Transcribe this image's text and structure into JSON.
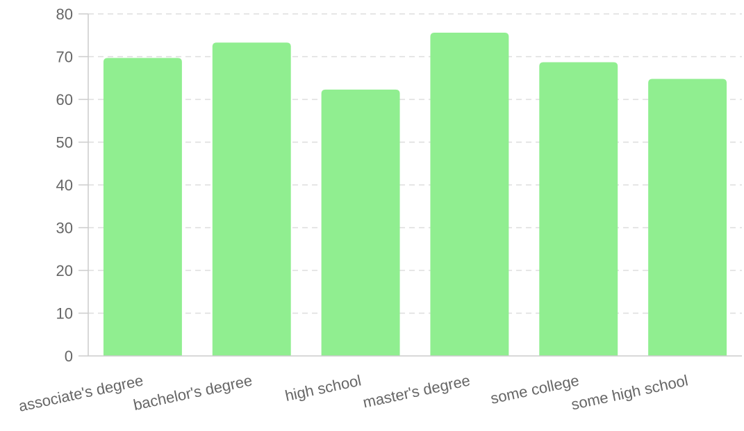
{
  "chart_data": {
    "type": "bar",
    "categories": [
      "associate's degree",
      "bachelor's degree",
      "high school",
      "master's degree",
      "some college",
      "some high school"
    ],
    "values": [
      69.7,
      73.3,
      62.3,
      75.6,
      68.7,
      64.8
    ],
    "ylim": [
      0,
      80
    ],
    "yticks": [
      0,
      10,
      20,
      30,
      40,
      50,
      60,
      70,
      80
    ],
    "grid": true,
    "bar_color": "#90ee90",
    "text_color": "#666666",
    "grid_color": "#dddddd"
  }
}
